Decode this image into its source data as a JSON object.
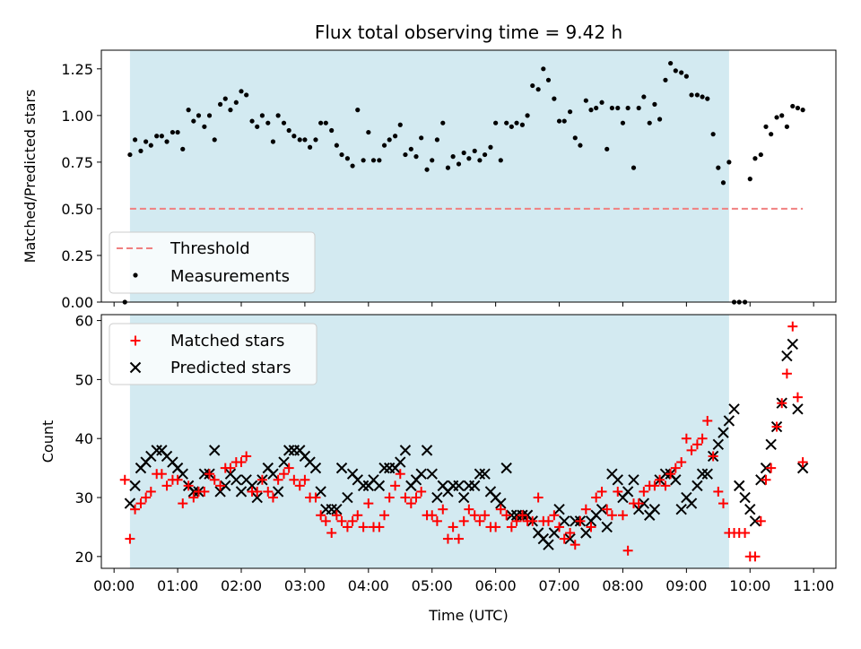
{
  "chart_data": [
    {
      "type": "scatter",
      "title": "Flux total observing time = 9.42 h",
      "xlabel": "",
      "ylabel": "Matched/Predicted stars",
      "xlim": [
        -0.2,
        11.35
      ],
      "ylim": [
        0,
        1.35
      ],
      "yticks": [
        0.0,
        0.25,
        0.5,
        0.75,
        1.0,
        1.25
      ],
      "ytick_labels": [
        "0.00",
        "0.25",
        "0.50",
        "0.75",
        "1.00",
        "1.25"
      ],
      "shaded_span": [
        0.25,
        9.67
      ],
      "legend": [
        {
          "label": "Threshold",
          "style": "dashed-line",
          "color": "#f08080"
        },
        {
          "label": "Measurements",
          "style": "dot",
          "color": "#000000"
        }
      ],
      "legend_position": "lower-left",
      "series": [
        {
          "name": "Threshold",
          "style": "dashed-line",
          "color": "#f08080",
          "x": [
            0.25,
            10.83
          ],
          "y": [
            0.5,
            0.5
          ]
        },
        {
          "name": "Measurements",
          "style": "dot",
          "color": "#000000",
          "x": [
            0.17,
            0.25,
            0.33,
            0.42,
            0.5,
            0.58,
            0.67,
            0.75,
            0.83,
            0.92,
            1.0,
            1.08,
            1.17,
            1.25,
            1.33,
            1.42,
            1.5,
            1.58,
            1.67,
            1.75,
            1.83,
            1.92,
            2.0,
            2.08,
            2.17,
            2.25,
            2.33,
            2.42,
            2.5,
            2.58,
            2.67,
            2.75,
            2.83,
            2.92,
            3.0,
            3.08,
            3.17,
            3.25,
            3.33,
            3.42,
            3.5,
            3.58,
            3.67,
            3.75,
            3.83,
            3.92,
            4.0,
            4.08,
            4.17,
            4.25,
            4.33,
            4.42,
            4.5,
            4.58,
            4.67,
            4.75,
            4.83,
            4.92,
            5.0,
            5.08,
            5.17,
            5.25,
            5.33,
            5.42,
            5.5,
            5.58,
            5.67,
            5.75,
            5.83,
            5.92,
            6.0,
            6.08,
            6.17,
            6.25,
            6.33,
            6.42,
            6.5,
            6.58,
            6.67,
            6.75,
            6.83,
            6.92,
            7.0,
            7.08,
            7.17,
            7.25,
            7.33,
            7.42,
            7.5,
            7.58,
            7.67,
            7.75,
            7.83,
            7.92,
            8.0,
            8.08,
            8.17,
            8.25,
            8.33,
            8.42,
            8.5,
            8.58,
            8.67,
            8.75,
            8.83,
            8.92,
            9.0,
            9.08,
            9.17,
            9.25,
            9.33,
            9.42,
            9.5,
            9.58,
            9.67,
            9.75,
            9.83,
            9.92,
            10.0,
            10.08,
            10.17,
            10.25,
            10.33,
            10.42,
            10.5,
            10.58,
            10.67,
            10.75,
            10.83
          ],
          "y": [
            0.0,
            0.79,
            0.87,
            0.81,
            0.86,
            0.84,
            0.89,
            0.89,
            0.86,
            0.91,
            0.91,
            0.82,
            1.03,
            0.97,
            1.0,
            0.94,
            1.0,
            0.87,
            1.06,
            1.09,
            1.03,
            1.07,
            1.13,
            1.11,
            0.97,
            0.94,
            1.0,
            0.96,
            0.86,
            1.0,
            0.96,
            0.92,
            0.89,
            0.87,
            0.87,
            0.83,
            0.87,
            0.96,
            0.96,
            0.92,
            0.84,
            0.79,
            0.77,
            0.73,
            1.03,
            0.76,
            0.91,
            0.76,
            0.76,
            0.84,
            0.87,
            0.89,
            0.95,
            0.79,
            0.82,
            0.78,
            0.88,
            0.71,
            0.76,
            0.87,
            0.96,
            0.72,
            0.78,
            0.74,
            0.8,
            0.77,
            0.81,
            0.76,
            0.79,
            0.83,
            0.96,
            0.76,
            0.96,
            0.94,
            0.96,
            0.95,
            1.0,
            1.16,
            1.14,
            1.25,
            1.19,
            1.09,
            0.97,
            0.97,
            1.02,
            0.88,
            0.84,
            1.08,
            1.03,
            1.04,
            1.07,
            0.82,
            1.04,
            1.04,
            0.96,
            1.04,
            0.72,
            1.04,
            1.1,
            0.96,
            1.06,
            0.98,
            1.19,
            1.28,
            1.24,
            1.23,
            1.21,
            1.11,
            1.11,
            1.1,
            1.09,
            0.9,
            0.72,
            0.64,
            0.75,
            0.0,
            0.0,
            0.0,
            0.66,
            0.77,
            0.79,
            0.94,
            0.9,
            0.99,
            1.0,
            0.94,
            1.05,
            1.04,
            1.03
          ]
        }
      ]
    },
    {
      "type": "scatter",
      "title": "",
      "xlabel": "Time (UTC)",
      "ylabel": "Count",
      "xlim": [
        -0.2,
        11.35
      ],
      "ylim": [
        18,
        61
      ],
      "yticks": [
        20,
        30,
        40,
        50,
        60
      ],
      "ytick_labels": [
        "20",
        "30",
        "40",
        "50",
        "60"
      ],
      "xticks": [
        0,
        1,
        2,
        3,
        4,
        5,
        6,
        7,
        8,
        9,
        10,
        11
      ],
      "xtick_labels": [
        "00:00",
        "01:00",
        "02:00",
        "03:00",
        "04:00",
        "05:00",
        "06:00",
        "07:00",
        "08:00",
        "09:00",
        "10:00",
        "11:00"
      ],
      "shaded_span": [
        0.25,
        9.67
      ],
      "legend": [
        {
          "label": "Matched stars",
          "style": "plus",
          "color": "#ff0000"
        },
        {
          "label": "Predicted stars",
          "style": "x",
          "color": "#000000"
        }
      ],
      "legend_position": "upper-left",
      "x": [
        0.17,
        0.25,
        0.33,
        0.42,
        0.5,
        0.58,
        0.67,
        0.75,
        0.83,
        0.92,
        1.0,
        1.08,
        1.17,
        1.25,
        1.33,
        1.42,
        1.5,
        1.58,
        1.67,
        1.75,
        1.83,
        1.92,
        2.0,
        2.08,
        2.17,
        2.25,
        2.33,
        2.42,
        2.5,
        2.58,
        2.67,
        2.75,
        2.83,
        2.92,
        3.0,
        3.08,
        3.17,
        3.25,
        3.33,
        3.42,
        3.5,
        3.58,
        3.67,
        3.75,
        3.83,
        3.92,
        4.0,
        4.08,
        4.17,
        4.25,
        4.33,
        4.42,
        4.5,
        4.58,
        4.67,
        4.75,
        4.83,
        4.92,
        5.0,
        5.08,
        5.17,
        5.25,
        5.33,
        5.42,
        5.5,
        5.58,
        5.67,
        5.75,
        5.83,
        5.92,
        6.0,
        6.08,
        6.17,
        6.25,
        6.33,
        6.42,
        6.5,
        6.58,
        6.67,
        6.75,
        6.83,
        6.92,
        7.0,
        7.08,
        7.17,
        7.25,
        7.33,
        7.42,
        7.5,
        7.58,
        7.67,
        7.75,
        7.83,
        7.92,
        8.0,
        8.08,
        8.17,
        8.25,
        8.33,
        8.42,
        8.5,
        8.58,
        8.67,
        8.75,
        8.83,
        8.92,
        9.0,
        9.08,
        9.17,
        9.25,
        9.33,
        9.42,
        9.5,
        9.58,
        9.67,
        9.75,
        9.83,
        9.92,
        10.0,
        10.08,
        10.17,
        10.25,
        10.33,
        10.42,
        10.5,
        10.58,
        10.67,
        10.75,
        10.83
      ],
      "series": [
        {
          "name": "Matched stars",
          "marker": "plus",
          "color": "#ff0000",
          "values": [
            33,
            23,
            28,
            29,
            30,
            31,
            34,
            34,
            32,
            33,
            33,
            29,
            32,
            30,
            31,
            31,
            34,
            33,
            32,
            35,
            35,
            36,
            36,
            37,
            31,
            31,
            33,
            31,
            30,
            33,
            34,
            35,
            33,
            32,
            33,
            30,
            30,
            27,
            26,
            24,
            27,
            26,
            25,
            26,
            27,
            25,
            29,
            25,
            25,
            27,
            30,
            32,
            34,
            30,
            29,
            30,
            31,
            27,
            27,
            26,
            28,
            23,
            25,
            23,
            26,
            28,
            27,
            26,
            27,
            25,
            25,
            28,
            27,
            25,
            26,
            27,
            26,
            26,
            30,
            26,
            26,
            27,
            25,
            23,
            24,
            22,
            26,
            28,
            25,
            30,
            31,
            28,
            27,
            31,
            27,
            21,
            29,
            29,
            31,
            32,
            32,
            33,
            32,
            34,
            35,
            36,
            40,
            38,
            39,
            40,
            43,
            37,
            31,
            29,
            24,
            24,
            24,
            24,
            20,
            20,
            26,
            33,
            35,
            42,
            46,
            51,
            59,
            47,
            36
          ]
        },
        {
          "name": "Predicted stars",
          "marker": "x",
          "color": "#000000",
          "values": [
            null,
            29,
            32,
            35,
            36,
            37,
            38,
            38,
            37,
            36,
            35,
            34,
            32,
            31,
            31,
            34,
            34,
            38,
            31,
            32,
            34,
            33,
            31,
            33,
            32,
            30,
            33,
            35,
            34,
            31,
            36,
            38,
            38,
            38,
            37,
            36,
            35,
            31,
            28,
            28,
            28,
            35,
            30,
            34,
            33,
            32,
            32,
            33,
            32,
            35,
            35,
            35,
            36,
            38,
            32,
            33,
            34,
            38,
            34,
            30,
            32,
            31,
            32,
            32,
            30,
            32,
            32,
            34,
            34,
            31,
            30,
            29,
            35,
            27,
            27,
            27,
            27,
            26,
            24,
            23,
            22,
            24,
            28,
            26,
            23,
            26,
            26,
            24,
            26,
            27,
            28,
            25,
            34,
            33,
            30,
            31,
            33,
            28,
            29,
            27,
            28,
            33,
            34,
            34,
            33,
            28,
            30,
            29,
            32,
            34,
            34,
            37,
            39,
            41,
            43,
            45,
            32,
            30,
            28,
            26,
            33,
            35,
            39,
            42,
            46,
            54,
            56,
            45,
            35
          ]
        }
      ]
    }
  ]
}
